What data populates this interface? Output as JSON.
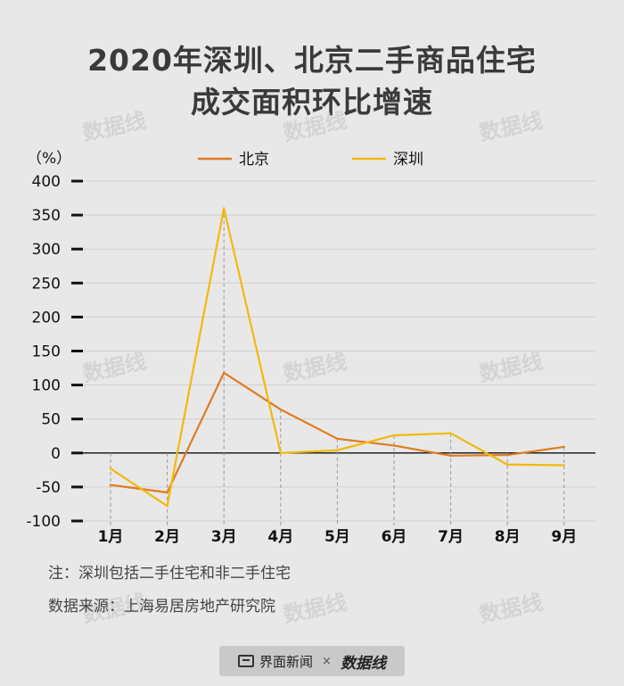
{
  "title_line1": "2020年深圳、北京二手商品住宅",
  "title_line2": "成交面积环比增速",
  "note": "注：深圳包括二手住宅和非二手住宅",
  "source": "数据来源：上海易居房地产研究院",
  "footer": {
    "brand1": "界面新闻",
    "times": "×",
    "brand2": "数据线"
  },
  "watermark": "数据线",
  "chart_data": {
    "type": "line",
    "ylabel": "（%）",
    "ylim": [
      -100,
      400
    ],
    "yticks": [
      400,
      350,
      300,
      250,
      200,
      150,
      100,
      50,
      0,
      -50,
      -100
    ],
    "categories": [
      "1月",
      "2月",
      "3月",
      "4月",
      "5月",
      "6月",
      "7月",
      "8月",
      "9月"
    ],
    "grid": true,
    "legend_position": "top",
    "series": [
      {
        "name": "北京",
        "color": "#e07b23",
        "values": [
          -47,
          -58,
          118,
          64,
          21,
          11,
          -4,
          -3,
          9
        ]
      },
      {
        "name": "深圳",
        "color": "#f2b90c",
        "values": [
          -23,
          -78,
          360,
          0,
          4,
          26,
          29,
          -17,
          -18
        ]
      }
    ]
  }
}
